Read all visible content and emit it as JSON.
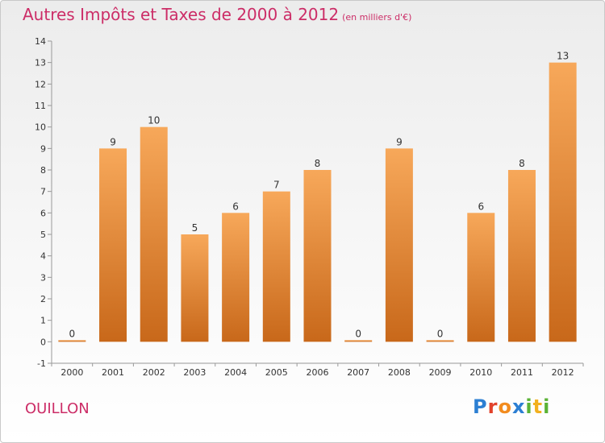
{
  "title": "Autres Impôts et Taxes de 2000 à 2012",
  "subtitle": "(en milliers d'€)",
  "commune": "OUILLON",
  "logo": {
    "letters": [
      "P",
      "r",
      "o",
      "x",
      "i",
      "t",
      "i"
    ]
  },
  "colors": {
    "title": "#cc2d67",
    "bar_light": "#f7a85a",
    "bar_dark": "#c8681a"
  },
  "chart_data": {
    "type": "bar",
    "categories": [
      "2000",
      "2001",
      "2002",
      "2003",
      "2004",
      "2005",
      "2006",
      "2007",
      "2008",
      "2009",
      "2010",
      "2011",
      "2012"
    ],
    "values": [
      0,
      9,
      10,
      5,
      6,
      7,
      8,
      0,
      9,
      0,
      6,
      8,
      13
    ],
    "title": "Autres Impôts et Taxes de 2000 à 2012",
    "subtitle": "(en milliers d'€)",
    "xlabel": "",
    "ylabel": "",
    "ylim": [
      -1,
      14
    ],
    "yticks": [
      -1,
      0,
      1,
      2,
      3,
      4,
      5,
      6,
      7,
      8,
      9,
      10,
      11,
      12,
      13,
      14
    ],
    "ytick_labels": [
      "-1",
      "0",
      "1",
      "2",
      "3",
      "4",
      "5",
      "6",
      "7",
      "8",
      "9",
      "10",
      "11",
      "12",
      "13",
      "14"
    ],
    "grid": false,
    "legend": "none"
  }
}
